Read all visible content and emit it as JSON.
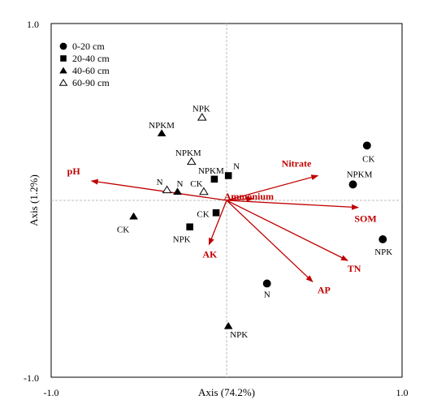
{
  "chart_data": {
    "type": "scatter",
    "subtype": "biplot",
    "xlabel": "Axis (74.2%)",
    "ylabel": "Axis (1.2%)",
    "xlim": [
      -1.0,
      1.0
    ],
    "ylim": [
      -1.0,
      1.0
    ],
    "x_tick_labels": [
      "-1.0",
      "1.0"
    ],
    "y_tick_labels": [
      "1.0",
      "-1.0"
    ],
    "grid": false,
    "zero_lines": true,
    "legend_position": "top-left",
    "arrow_color": "#c00000",
    "series": [
      {
        "name": "0-20 cm",
        "marker": "circle",
        "points": [
          {
            "label": "CK",
            "x": 0.8,
            "y": 0.31
          },
          {
            "label": "NPKM",
            "x": 0.72,
            "y": 0.09
          },
          {
            "label": "NPK",
            "x": 0.89,
            "y": -0.22
          },
          {
            "label": "N",
            "x": 0.23,
            "y": -0.47
          }
        ]
      },
      {
        "name": "20-40 cm",
        "marker": "square",
        "points": [
          {
            "label": "N",
            "x": 0.01,
            "y": 0.14
          },
          {
            "label": "NPKM",
            "x": -0.07,
            "y": 0.12
          },
          {
            "label": "CK",
            "x": -0.06,
            "y": -0.07
          },
          {
            "label": "NPK",
            "x": -0.21,
            "y": -0.15
          }
        ]
      },
      {
        "name": "40-60 cm",
        "marker": "triangle",
        "points": [
          {
            "label": "NPKM",
            "x": -0.37,
            "y": 0.38
          },
          {
            "label": "N",
            "x": -0.28,
            "y": 0.05
          },
          {
            "label": "CK",
            "x": -0.53,
            "y": -0.09
          },
          {
            "label": "NPK",
            "x": 0.01,
            "y": -0.71
          }
        ]
      },
      {
        "name": "60-90 cm",
        "marker": "triangle-open",
        "points": [
          {
            "label": "NPK",
            "x": -0.14,
            "y": 0.47
          },
          {
            "label": "NPKM",
            "x": -0.2,
            "y": 0.22
          },
          {
            "label": "N",
            "x": -0.34,
            "y": 0.06
          },
          {
            "label": "CK",
            "x": -0.13,
            "y": 0.05
          }
        ]
      }
    ],
    "vectors": [
      {
        "label": "pH",
        "x": -0.77,
        "y": 0.11
      },
      {
        "label": "Nitrate",
        "x": 0.52,
        "y": 0.14
      },
      {
        "label": "Ammonium",
        "x": 0.15,
        "y": 0.01
      },
      {
        "label": "SOM",
        "x": 0.75,
        "y": -0.04
      },
      {
        "label": "AK",
        "x": -0.1,
        "y": -0.25
      },
      {
        "label": "TN",
        "x": 0.69,
        "y": -0.34
      },
      {
        "label": "AP",
        "x": 0.49,
        "y": -0.46
      }
    ]
  }
}
